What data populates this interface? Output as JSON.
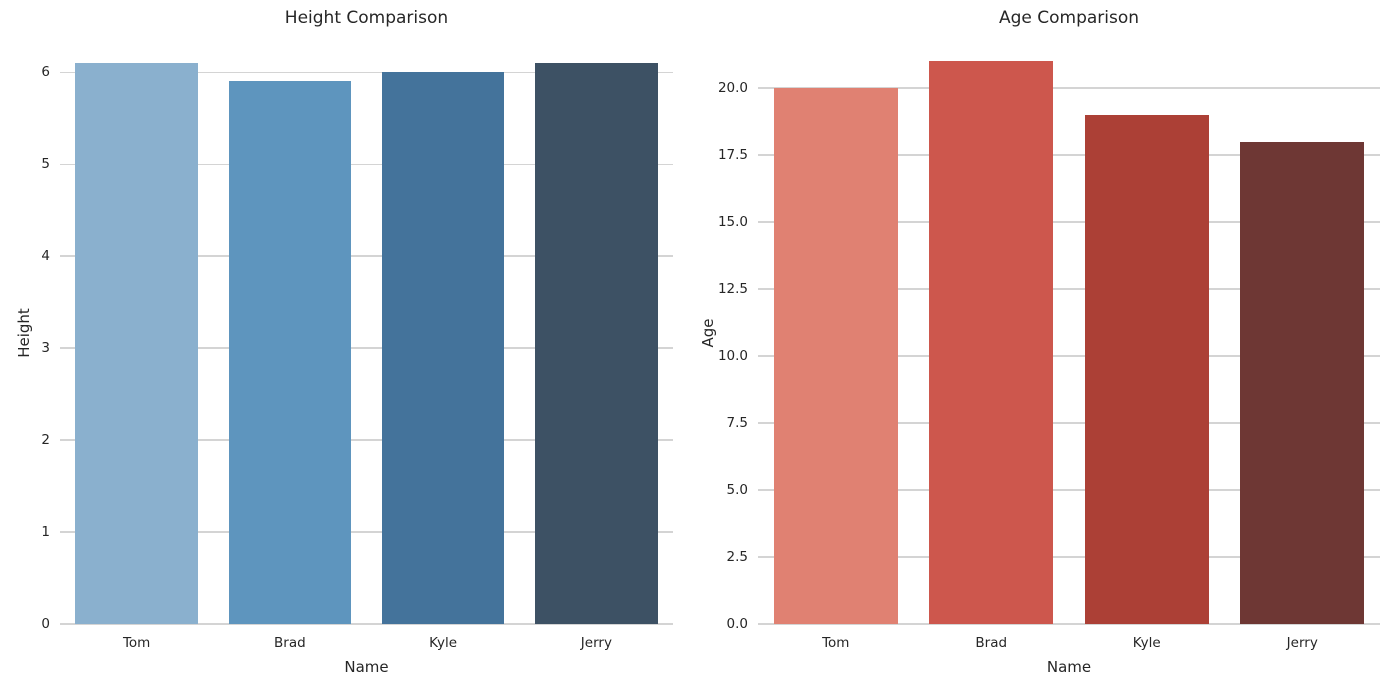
{
  "chart_data": [
    {
      "type": "bar",
      "title": "Height Comparison",
      "xlabel": "Name",
      "ylabel": "Height",
      "categories": [
        "Tom",
        "Brad",
        "Kyle",
        "Jerry"
      ],
      "values": [
        6.1,
        5.9,
        6.0,
        6.1
      ],
      "bar_colors": [
        "#8ab0ce",
        "#5e95be",
        "#44739b",
        "#3d5164"
      ],
      "ylim": [
        0,
        6.34
      ],
      "yticks": [
        0,
        1,
        2,
        3,
        4,
        5,
        6
      ],
      "ytick_labels": [
        "0",
        "1",
        "2",
        "3",
        "4",
        "5",
        "6"
      ],
      "grid": true,
      "legend": "none"
    },
    {
      "type": "bar",
      "title": "Age Comparison",
      "xlabel": "Name",
      "ylabel": "Age",
      "categories": [
        "Tom",
        "Brad",
        "Kyle",
        "Jerry"
      ],
      "values": [
        20,
        21,
        19,
        18
      ],
      "bar_colors": [
        "#e08172",
        "#cd574d",
        "#ac4036",
        "#6e3734"
      ],
      "ylim": [
        0,
        21.75
      ],
      "yticks": [
        0,
        2.5,
        5,
        7.5,
        10,
        12.5,
        15,
        17.5,
        20
      ],
      "ytick_labels": [
        "0.0",
        "2.5",
        "5.0",
        "7.5",
        "10.0",
        "12.5",
        "15.0",
        "17.5",
        "20.0"
      ],
      "grid": true,
      "legend": "none"
    }
  ],
  "style": {
    "grid_color": "#d4d4d4",
    "text_color": "#262626",
    "background_color": "#ffffff"
  }
}
